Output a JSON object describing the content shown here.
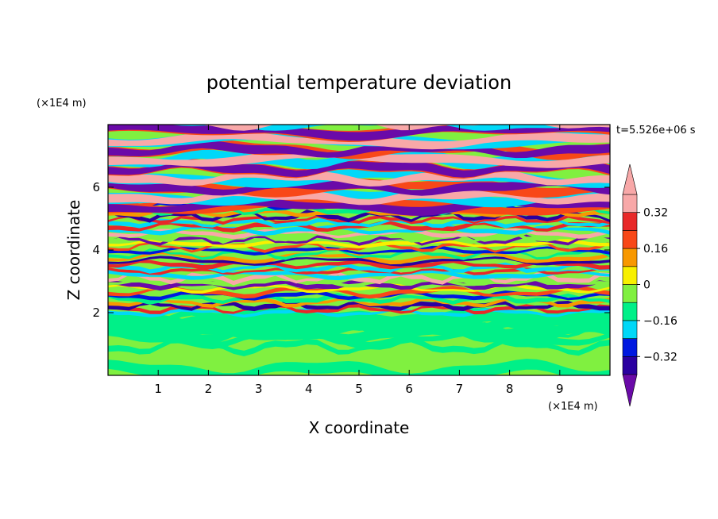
{
  "chart_data": {
    "type": "heatmap",
    "title": "potential temperature deviation",
    "xlabel": "X coordinate",
    "ylabel": "Z coordinate",
    "x_unit": "(×1E4 m)",
    "y_unit": "(×1E4 m)",
    "time_label": "t=5.526e+06 s",
    "xlim": [
      0,
      10
    ],
    "ylim": [
      0,
      8
    ],
    "x_ticks": [
      "1",
      "2",
      "3",
      "4",
      "5",
      "6",
      "7",
      "8",
      "9"
    ],
    "y_ticks": [
      "2",
      "4",
      "6"
    ],
    "colorbar": {
      "levels": [
        -0.4,
        -0.32,
        -0.24,
        -0.16,
        -0.08,
        0,
        0.08,
        0.16,
        0.24,
        0.32,
        0.4
      ],
      "tick_labels": [
        "0.32",
        "0.16",
        "0",
        "−0.16",
        "−0.32"
      ],
      "tick_values": [
        0.32,
        0.16,
        0,
        -0.16,
        -0.32
      ],
      "colors": [
        "#6a0aa8",
        "#2a00a0",
        "#0018e0",
        "#00d8f8",
        "#00f088",
        "#80f040",
        "#f8f000",
        "#f89800",
        "#f84818",
        "#e82828",
        "#f8a8a8"
      ],
      "extend": "both"
    },
    "layers": [
      {
        "z_range": [
          0,
          2
        ],
        "pattern": "mostly 0 to +0.08 (green) with patches -0.08 to 0"
      },
      {
        "z_range": [
          2,
          5.5
        ],
        "pattern": "thin horizontal layers alternating across the full range -0.4 to +0.4"
      },
      {
        "z_range": [
          5.5,
          8
        ],
        "pattern": "broad bands alternating below -0.4 (purple) and above +0.4 (pink)"
      }
    ]
  }
}
